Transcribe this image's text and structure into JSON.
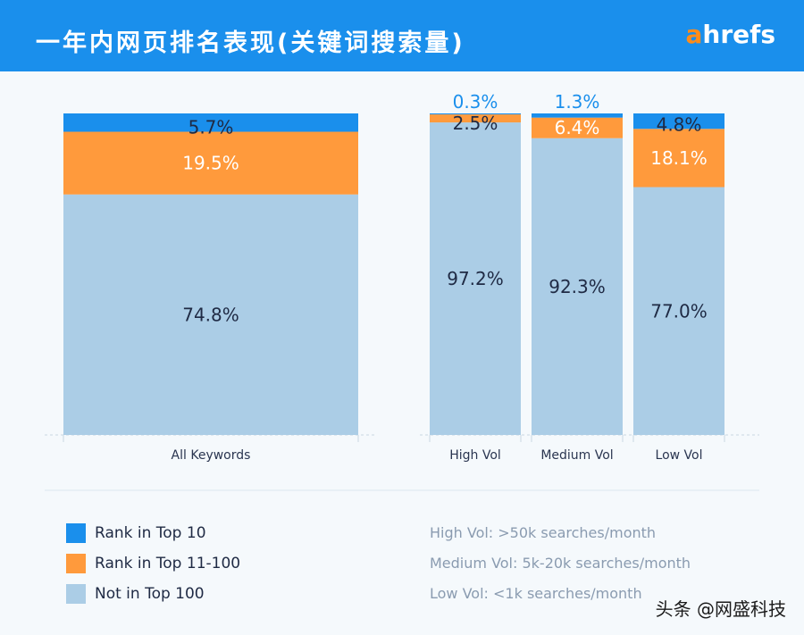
{
  "header": {
    "title": "一年内网页排名表现(关键词搜索量)",
    "logo_a": "a",
    "logo_rest": "hrefs"
  },
  "colors": {
    "rank_top10": "#1a8fec",
    "rank_11_100": "#ff9a3c",
    "not_top100": "#abcde6",
    "header_bg": "#1a8fec"
  },
  "chart_data": {
    "type": "bar",
    "stacked": true,
    "normalized": true,
    "categories": [
      "All Keywords",
      "High Vol",
      "Medium Vol",
      "Low Vol"
    ],
    "series": [
      {
        "name": "Not in Top 100",
        "values": [
          74.8,
          97.2,
          92.3,
          77.0
        ],
        "labels": [
          "74.8%",
          "97.2%",
          "92.3%",
          "77.0%"
        ]
      },
      {
        "name": "Rank in Top 11-100",
        "values": [
          19.5,
          2.5,
          6.4,
          18.1
        ],
        "labels": [
          "19.5%",
          "2.5%",
          "6.4%",
          "18.1%"
        ]
      },
      {
        "name": "Rank in Top 10",
        "values": [
          5.7,
          0.3,
          1.3,
          4.8
        ],
        "labels": [
          "5.7%",
          "0.3%",
          "1.3%",
          "4.8%"
        ]
      }
    ],
    "ylim": [
      0,
      100
    ]
  },
  "legend": {
    "items": [
      {
        "label": "Rank in Top 10",
        "color": "#1a8fec"
      },
      {
        "label": "Rank in Top 11-100",
        "color": "#ff9a3c"
      },
      {
        "label": "Not in Top 100",
        "color": "#abcde6"
      }
    ]
  },
  "notes": [
    "High Vol: >50k searches/month",
    "Medium Vol: 5k-20k searches/month",
    "Low Vol: <1k searches/month"
  ],
  "watermark": "头条 @网盛科技"
}
